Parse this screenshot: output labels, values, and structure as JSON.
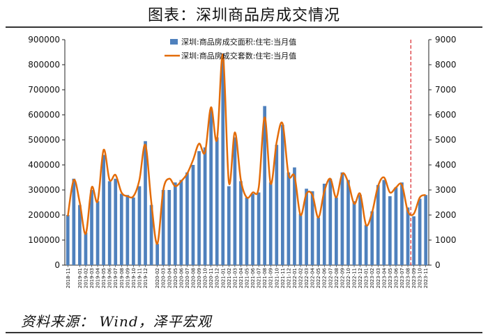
{
  "title": "图表：深圳商品房成交情况",
  "source": "资料来源：  Wind，泽平宏观",
  "chart_data": {
    "type": "bar+line",
    "categories": [
      "2018-11",
      "2018-12",
      "2019-01",
      "2019-02",
      "2019-03",
      "2019-04",
      "2019-05",
      "2019-06",
      "2019-07",
      "2019-08",
      "2019-09",
      "2019-10",
      "2019-11",
      "2019-12",
      "2020-01",
      "2020-02",
      "2020-03",
      "2020-04",
      "2020-05",
      "2020-06",
      "2020-07",
      "2020-08",
      "2020-09",
      "2020-10",
      "2020-11",
      "2020-12",
      "2021-01",
      "2021-02",
      "2021-03",
      "2021-04",
      "2021-05",
      "2021-06",
      "2021-07",
      "2021-08",
      "2021-09",
      "2021-10",
      "2021-11",
      "2021-12",
      "2022-01",
      "2022-02",
      "2022-03",
      "2022-04",
      "2022-05",
      "2022-06",
      "2022-07",
      "2022-08",
      "2022-09",
      "2022-10",
      "2022-11",
      "2022-12",
      "2023-01",
      "2023-02",
      "2023-03",
      "2023-04",
      "2023-05",
      "2023-06",
      "2023-07",
      "2023-08",
      "2023-09",
      "2023-10",
      "2023-11"
    ],
    "xtick_labels": [
      "2018-11",
      "2019-01",
      "2019-02",
      "2019-03",
      "2019-04",
      "2019-05",
      "2019-06",
      "2019-07",
      "2019-08",
      "2019-09",
      "2019-10",
      "2019-11",
      "2019-12",
      "2020-02",
      "2020-03",
      "2020-04",
      "2020-05",
      "2020-06",
      "2020-07",
      "2020-08",
      "2020-09",
      "2020-10",
      "2020-11",
      "2020-12",
      "2021-01",
      "2021-02",
      "2021-03",
      "2021-04",
      "2021-05",
      "2021-06",
      "2021-07",
      "2021-08",
      "2021-09",
      "2021-10",
      "2021-11",
      "2021-12",
      "2022-01",
      "2022-02",
      "2022-03",
      "2022-04",
      "2022-05",
      "2022-06",
      "2022-07",
      "2022-08",
      "2022-09",
      "2022-10",
      "2022-11",
      "2022-12",
      "2023-01",
      "2023-02",
      "2023-03",
      "2023-04",
      "2023-05",
      "2023-06",
      "2023-07",
      "2023-08",
      "2023-09",
      "2023-10",
      "2023-11"
    ],
    "series": [
      {
        "name": "深圳:商品房成交面积:住宅:当月值",
        "kind": "bar",
        "axis": "left",
        "color": "#4f81bd",
        "values": [
          200000,
          345000,
          240000,
          130000,
          300000,
          255000,
          440000,
          335000,
          345000,
          285000,
          280000,
          270000,
          315000,
          495000,
          240000,
          85000,
          300000,
          300000,
          330000,
          340000,
          370000,
          400000,
          455000,
          470000,
          620000,
          510000,
          845000,
          315000,
          510000,
          335000,
          270000,
          285000,
          290000,
          635000,
          330000,
          480000,
          560000,
          370000,
          390000,
          205000,
          305000,
          295000,
          190000,
          325000,
          345000,
          270000,
          370000,
          340000,
          255000,
          280000,
          160000,
          215000,
          320000,
          340000,
          275000,
          310000,
          330000,
          230000,
          195000,
          265000,
          280000
        ]
      },
      {
        "name": "深圳:商品房成交套数:住宅:当月值",
        "kind": "line",
        "axis": "right",
        "color": "#e36c09",
        "values": [
          1950,
          3400,
          2500,
          1250,
          3100,
          2550,
          4600,
          3400,
          3600,
          2900,
          2750,
          2750,
          3400,
          4800,
          2500,
          850,
          3000,
          3450,
          3150,
          3350,
          3650,
          4200,
          4850,
          4500,
          6300,
          5000,
          8400,
          3300,
          5300,
          3400,
          2700,
          2900,
          3100,
          5900,
          3250,
          4900,
          5650,
          3600,
          3550,
          2000,
          2850,
          2800,
          1900,
          2950,
          3450,
          2700,
          3650,
          3300,
          2450,
          2850,
          1600,
          2100,
          3150,
          3500,
          2900,
          3100,
          3200,
          2150,
          2050,
          2700,
          2800
        ]
      }
    ],
    "y_left": {
      "min": 0,
      "max": 900000,
      "ticks": [
        "0",
        "100000",
        "200000",
        "300000",
        "400000",
        "500000",
        "600000",
        "700000",
        "800000",
        "900000"
      ]
    },
    "y_right": {
      "min": 0,
      "max": 9000,
      "ticks": [
        "0",
        "1000",
        "2000",
        "3000",
        "4000",
        "5000",
        "6000",
        "7000",
        "8000",
        "9000"
      ]
    },
    "marker_category": "2023-09",
    "marker_color": "#d9252a",
    "legend_position": "top-center",
    "grid": false
  }
}
